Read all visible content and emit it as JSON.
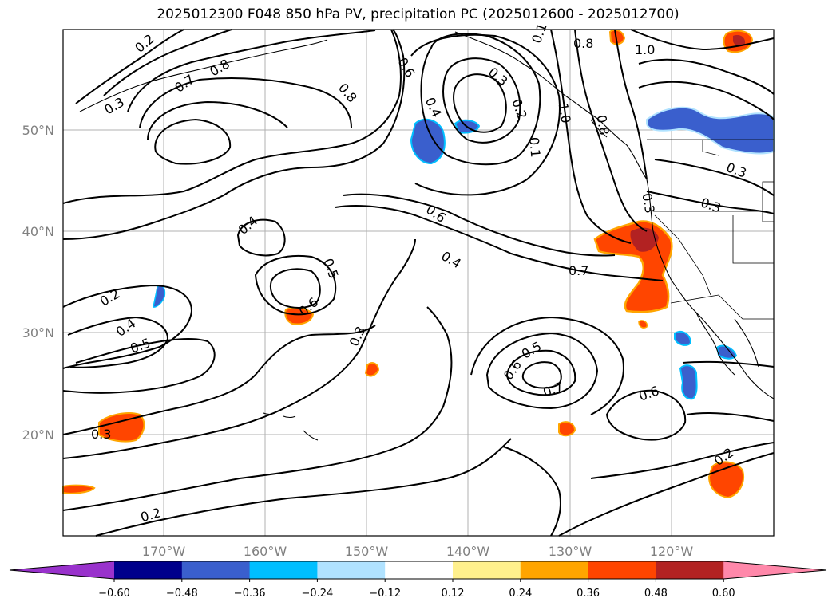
{
  "title": "2025012300 F048 850 hPa PV, precipitation PC (2025012600 - 2025012700)",
  "lat_ticks": [
    "50°N",
    "40°N",
    "30°N",
    "20°N"
  ],
  "lon_ticks": [
    "170°W",
    "160°W",
    "150°W",
    "140°W",
    "130°W",
    "120°W"
  ],
  "colorbar": {
    "ticks": [
      "−0.60",
      "−0.48",
      "−0.36",
      "−0.24",
      "−0.12",
      "0.12",
      "0.24",
      "0.36",
      "0.48",
      "0.60"
    ],
    "colors": [
      "#9932cc",
      "#00008b",
      "#3a5fcd",
      "#00bfff",
      "#b0e2ff",
      "#ffffff",
      "#fff08c",
      "#ffa500",
      "#ff4500",
      "#b22222",
      "#ff88aa"
    ]
  },
  "contour_labels": [
    "0.2",
    "0.7",
    "0.8",
    "0.3",
    "0.6",
    "0.8",
    "0.4",
    "0.3",
    "0.2",
    "0.8",
    "1.0",
    "0.8",
    "1.0",
    "0.6",
    "0.4",
    "0.5",
    "0.6",
    "0.4",
    "0.2",
    "0.4",
    "0.5",
    "0.3",
    "0.3",
    "0.7",
    "0.5",
    "0.6",
    "0.7",
    "0.6",
    "0.3",
    "0.2",
    "0.2",
    "0.3",
    "0.3",
    "0.1",
    "0.1"
  ],
  "colors": {
    "positive_precip": "#ff4500",
    "negative_precip": "#3a5fcd"
  }
}
